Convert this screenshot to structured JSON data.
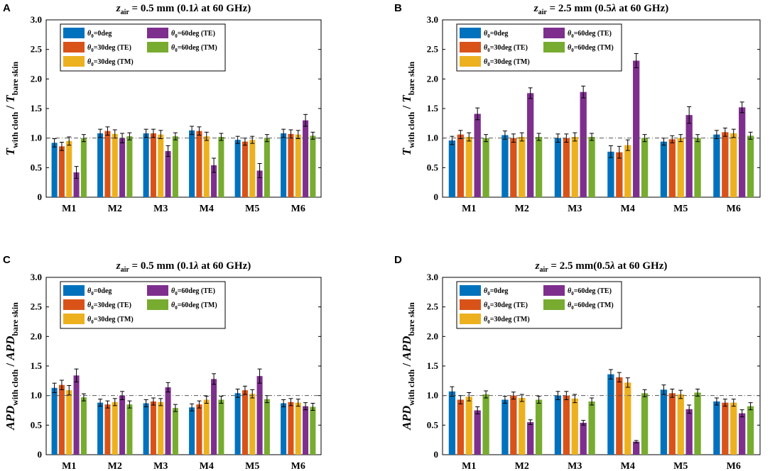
{
  "colors": {
    "s0": "#0072BD",
    "s1": "#D95319",
    "s2": "#EDB120",
    "s3": "#7E2F8E",
    "s4": "#77AC30"
  },
  "chart_data": [
    {
      "panel": "A",
      "type": "bar",
      "title": "z_air = 0.5 mm (0.1λ at 60 GHz)",
      "title_parts": {
        "var": "z",
        "sub": "air",
        "rest": " = 0.5 mm (0.1",
        "lambda": "λ",
        "tail": " at 60 GHz)"
      },
      "ylabel_parts": {
        "a": "T",
        "asub": "with cloth",
        "sep": " / ",
        "b": "T",
        "bsub": "bare skin"
      },
      "categories": [
        "M1",
        "M2",
        "M3",
        "M4",
        "M5",
        "M6"
      ],
      "ylim": [
        0,
        3
      ],
      "yticks": [
        "0",
        "0.5",
        "1.0",
        "1.5",
        "2.0",
        "2.5",
        "3.0"
      ],
      "reference_line": 1.0,
      "series": [
        {
          "name": "θ0=0deg",
          "values": [
            0.92,
            1.08,
            1.08,
            1.13,
            0.97,
            1.08
          ],
          "err": [
            0.07,
            0.07,
            0.07,
            0.07,
            0.06,
            0.07
          ]
        },
        {
          "name": "θ0=30deg (TE)",
          "values": [
            0.86,
            1.12,
            1.08,
            1.12,
            0.94,
            1.07
          ],
          "err": [
            0.07,
            0.07,
            0.07,
            0.07,
            0.06,
            0.07
          ]
        },
        {
          "name": "θ0=30deg (TM)",
          "values": [
            0.95,
            1.07,
            1.06,
            1.03,
            0.97,
            1.06
          ],
          "err": [
            0.07,
            0.07,
            0.07,
            0.07,
            0.06,
            0.07
          ]
        },
        {
          "name": "θ0=60deg (TE)",
          "values": [
            0.42,
            1.0,
            0.78,
            0.54,
            0.45,
            1.3
          ],
          "err": [
            0.1,
            0.08,
            0.09,
            0.12,
            0.12,
            0.1
          ]
        },
        {
          "name": "θ0=60deg (TM)",
          "values": [
            1.0,
            1.03,
            1.03,
            1.02,
            1.0,
            1.04
          ],
          "err": [
            0.06,
            0.06,
            0.06,
            0.06,
            0.06,
            0.06
          ]
        }
      ]
    },
    {
      "panel": "B",
      "type": "bar",
      "title": "z_air = 2.5 mm (0.5λ at 60 GHz)",
      "title_parts": {
        "var": "z",
        "sub": "air",
        "rest": " = 2.5 mm (0.5",
        "lambda": "λ",
        "tail": " at 60 GHz)"
      },
      "ylabel_parts": {
        "a": "T",
        "asub": "with cloth",
        "sep": " / ",
        "b": "T",
        "bsub": "bare skin"
      },
      "categories": [
        "M1",
        "M2",
        "M3",
        "M4",
        "M5",
        "M6"
      ],
      "ylim": [
        0,
        3
      ],
      "yticks": [
        "0",
        "0.5",
        "1.0",
        "1.5",
        "2.0",
        "2.5",
        "3.0"
      ],
      "reference_line": 1.0,
      "series": [
        {
          "name": "θ0=0deg",
          "values": [
            0.96,
            1.05,
            1.0,
            0.77,
            0.94,
            1.06
          ],
          "err": [
            0.07,
            0.07,
            0.07,
            0.1,
            0.06,
            0.07
          ]
        },
        {
          "name": "θ0=30deg (TE)",
          "values": [
            1.06,
            1.0,
            1.0,
            0.76,
            0.98,
            1.1
          ],
          "err": [
            0.07,
            0.07,
            0.07,
            0.1,
            0.06,
            0.07
          ]
        },
        {
          "name": "θ0=30deg (TM)",
          "values": [
            1.02,
            1.02,
            1.02,
            0.88,
            1.0,
            1.08
          ],
          "err": [
            0.07,
            0.07,
            0.07,
            0.09,
            0.06,
            0.07
          ]
        },
        {
          "name": "θ0=60deg (TE)",
          "values": [
            1.41,
            1.76,
            1.78,
            2.31,
            1.39,
            1.52
          ],
          "err": [
            0.1,
            0.09,
            0.1,
            0.12,
            0.14,
            0.09
          ]
        },
        {
          "name": "θ0=60deg (TM)",
          "values": [
            1.0,
            1.02,
            1.02,
            1.0,
            1.0,
            1.04
          ],
          "err": [
            0.06,
            0.06,
            0.06,
            0.06,
            0.06,
            0.06
          ]
        }
      ]
    },
    {
      "panel": "C",
      "type": "bar",
      "title": "z_air = 0.5 mm (0.1λ at 60 GHz)",
      "title_parts": {
        "var": "z",
        "sub": "air",
        "rest": " = 0.5 mm (0.1",
        "lambda": "λ",
        "tail": " at 60 GHz)"
      },
      "ylabel_parts": {
        "a": "APD",
        "asub": "with cloth",
        "sep": " / ",
        "b": "APD",
        "bsub": "bare skin"
      },
      "categories": [
        "M1",
        "M2",
        "M3",
        "M4",
        "M5",
        "M6"
      ],
      "ylim": [
        0,
        3
      ],
      "yticks": [
        "0",
        "0.5",
        "1.0",
        "1.5",
        "2.0",
        "2.5",
        "3.0"
      ],
      "reference_line": 1.0,
      "series": [
        {
          "name": "θ0=0deg",
          "values": [
            1.13,
            0.88,
            0.87,
            0.8,
            1.04,
            0.87
          ],
          "err": [
            0.08,
            0.06,
            0.06,
            0.06,
            0.07,
            0.06
          ]
        },
        {
          "name": "θ0=30deg (TE)",
          "values": [
            1.18,
            0.85,
            0.9,
            0.85,
            1.09,
            0.89
          ],
          "err": [
            0.08,
            0.06,
            0.06,
            0.06,
            0.07,
            0.06
          ]
        },
        {
          "name": "θ0=30deg (TM)",
          "values": [
            1.09,
            0.89,
            0.89,
            0.93,
            1.03,
            0.88
          ],
          "err": [
            0.08,
            0.06,
            0.06,
            0.06,
            0.07,
            0.06
          ]
        },
        {
          "name": "θ0=60deg (TE)",
          "values": [
            1.34,
            1.0,
            1.14,
            1.28,
            1.33,
            0.82
          ],
          "err": [
            0.11,
            0.07,
            0.08,
            0.09,
            0.12,
            0.06
          ]
        },
        {
          "name": "θ0=60deg (TM)",
          "values": [
            0.97,
            0.85,
            0.79,
            0.93,
            0.94,
            0.81
          ],
          "err": [
            0.06,
            0.06,
            0.06,
            0.06,
            0.06,
            0.06
          ]
        }
      ]
    },
    {
      "panel": "D",
      "type": "bar",
      "title": "z_air = 2.5 mm(0.5λ at 60 GHz)",
      "title_parts": {
        "var": "z",
        "sub": "air",
        "rest": " = 2.5 mm(0.5",
        "lambda": "λ",
        "tail": " at 60 GHz)"
      },
      "ylabel_parts": {
        "a": "APD",
        "asub": "with cloth",
        "sep": " / ",
        "b": "APD",
        "bsub": "bare skin"
      },
      "categories": [
        "M1",
        "M2",
        "M3",
        "M4",
        "M5",
        "M6"
      ],
      "ylim": [
        0,
        3
      ],
      "yticks": [
        "0",
        "0.5",
        "1.0",
        "1.5",
        "2.0",
        "2.5",
        "3.0"
      ],
      "reference_line": 1.0,
      "series": [
        {
          "name": "θ0=0deg",
          "values": [
            1.07,
            0.93,
            1.0,
            1.36,
            1.1,
            0.9
          ],
          "err": [
            0.08,
            0.06,
            0.07,
            0.08,
            0.08,
            0.06
          ]
        },
        {
          "name": "θ0=30deg (TE)",
          "values": [
            0.93,
            1.0,
            1.0,
            1.31,
            1.04,
            0.88
          ],
          "err": [
            0.07,
            0.06,
            0.07,
            0.08,
            0.07,
            0.06
          ]
        },
        {
          "name": "θ0=30deg (TM)",
          "values": [
            0.98,
            0.96,
            0.95,
            1.22,
            1.02,
            0.88
          ],
          "err": [
            0.07,
            0.06,
            0.07,
            0.08,
            0.07,
            0.06
          ]
        },
        {
          "name": "θ0=60deg (TE)",
          "values": [
            0.75,
            0.55,
            0.54,
            0.22,
            0.77,
            0.7
          ],
          "err": [
            0.06,
            0.04,
            0.04,
            0.02,
            0.07,
            0.06
          ]
        },
        {
          "name": "θ0=60deg (TM)",
          "values": [
            1.02,
            0.93,
            0.9,
            1.04,
            1.05,
            0.82
          ],
          "err": [
            0.06,
            0.06,
            0.06,
            0.06,
            0.06,
            0.06
          ]
        }
      ]
    }
  ],
  "legend": {
    "entries": [
      {
        "sym": "θ",
        "sub": "0",
        "label": "=0deg"
      },
      {
        "sym": "θ",
        "sub": "0",
        "label": "=30deg (TE)"
      },
      {
        "sym": "θ",
        "sub": "0",
        "label": "=30deg (TM)"
      },
      {
        "sym": "θ",
        "sub": "0",
        "label": "=60deg (TE)"
      },
      {
        "sym": "θ",
        "sub": "0",
        "label": "=60deg (TM)"
      }
    ]
  }
}
